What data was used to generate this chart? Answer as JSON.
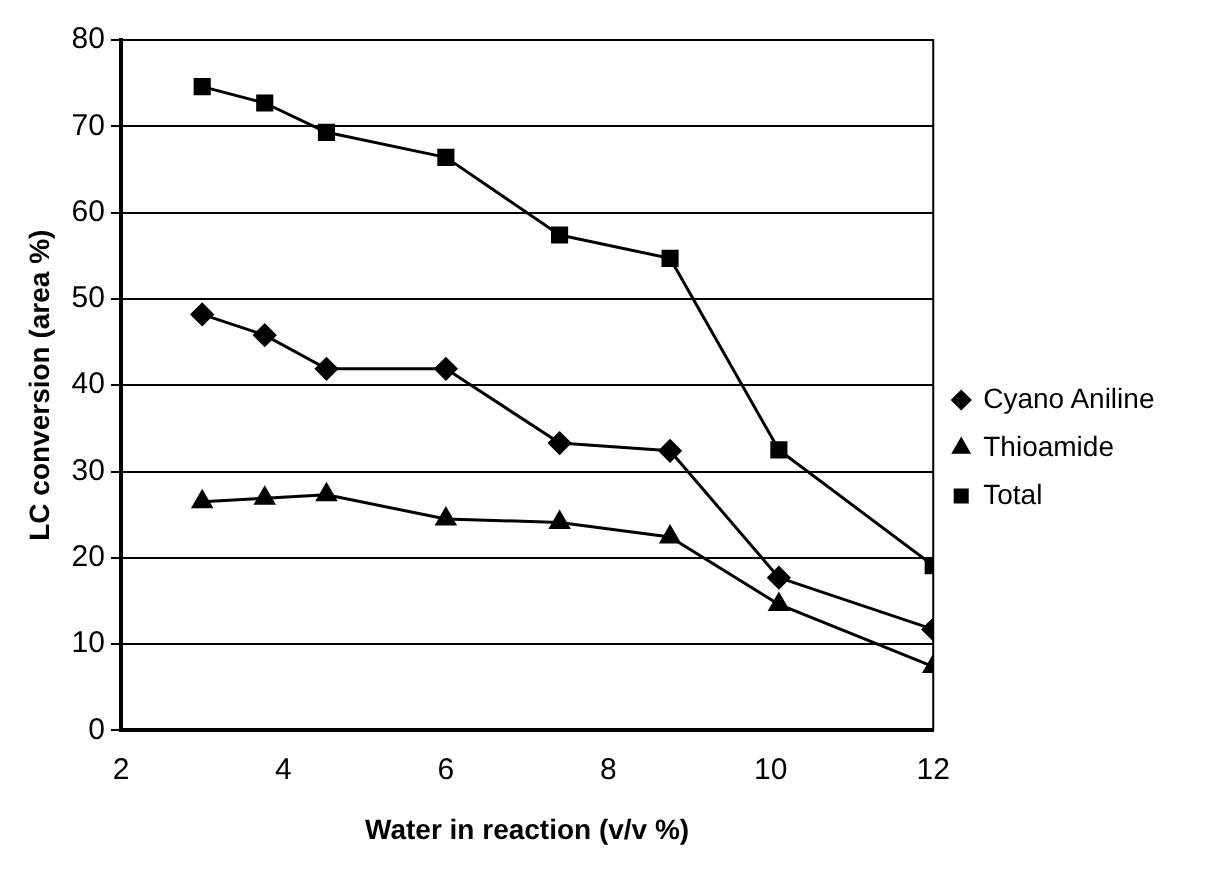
{
  "chart_data": {
    "type": "line",
    "xlabel": "Water in reaction (v/v %)",
    "ylabel": "LC conversion (area %)",
    "x": [
      3.0,
      3.77,
      4.53,
      6.0,
      7.4,
      8.76,
      10.1,
      12.0
    ],
    "series": [
      {
        "name": "Cyano Aniline",
        "color": "#000000",
        "marker": "diamond",
        "values": [
          48.2,
          45.8,
          41.9,
          41.9,
          33.3,
          32.4,
          17.7,
          11.7
        ]
      },
      {
        "name": "Thioamide",
        "color": "#000000",
        "marker": "triangle",
        "values": [
          26.5,
          26.9,
          27.3,
          24.5,
          24.1,
          22.4,
          14.6,
          7.4
        ]
      },
      {
        "name": "Total",
        "color": "#000000",
        "marker": "square",
        "values": [
          74.6,
          72.7,
          69.3,
          66.4,
          57.4,
          54.7,
          32.5,
          19.1
        ]
      }
    ],
    "xlim": [
      2,
      12
    ],
    "xticks": [
      2,
      4,
      6,
      8,
      10,
      12
    ],
    "ylim": [
      0,
      80
    ],
    "yticks": [
      0,
      10,
      20,
      30,
      40,
      50,
      60,
      70,
      80
    ],
    "grid": "y",
    "legend": "right"
  }
}
